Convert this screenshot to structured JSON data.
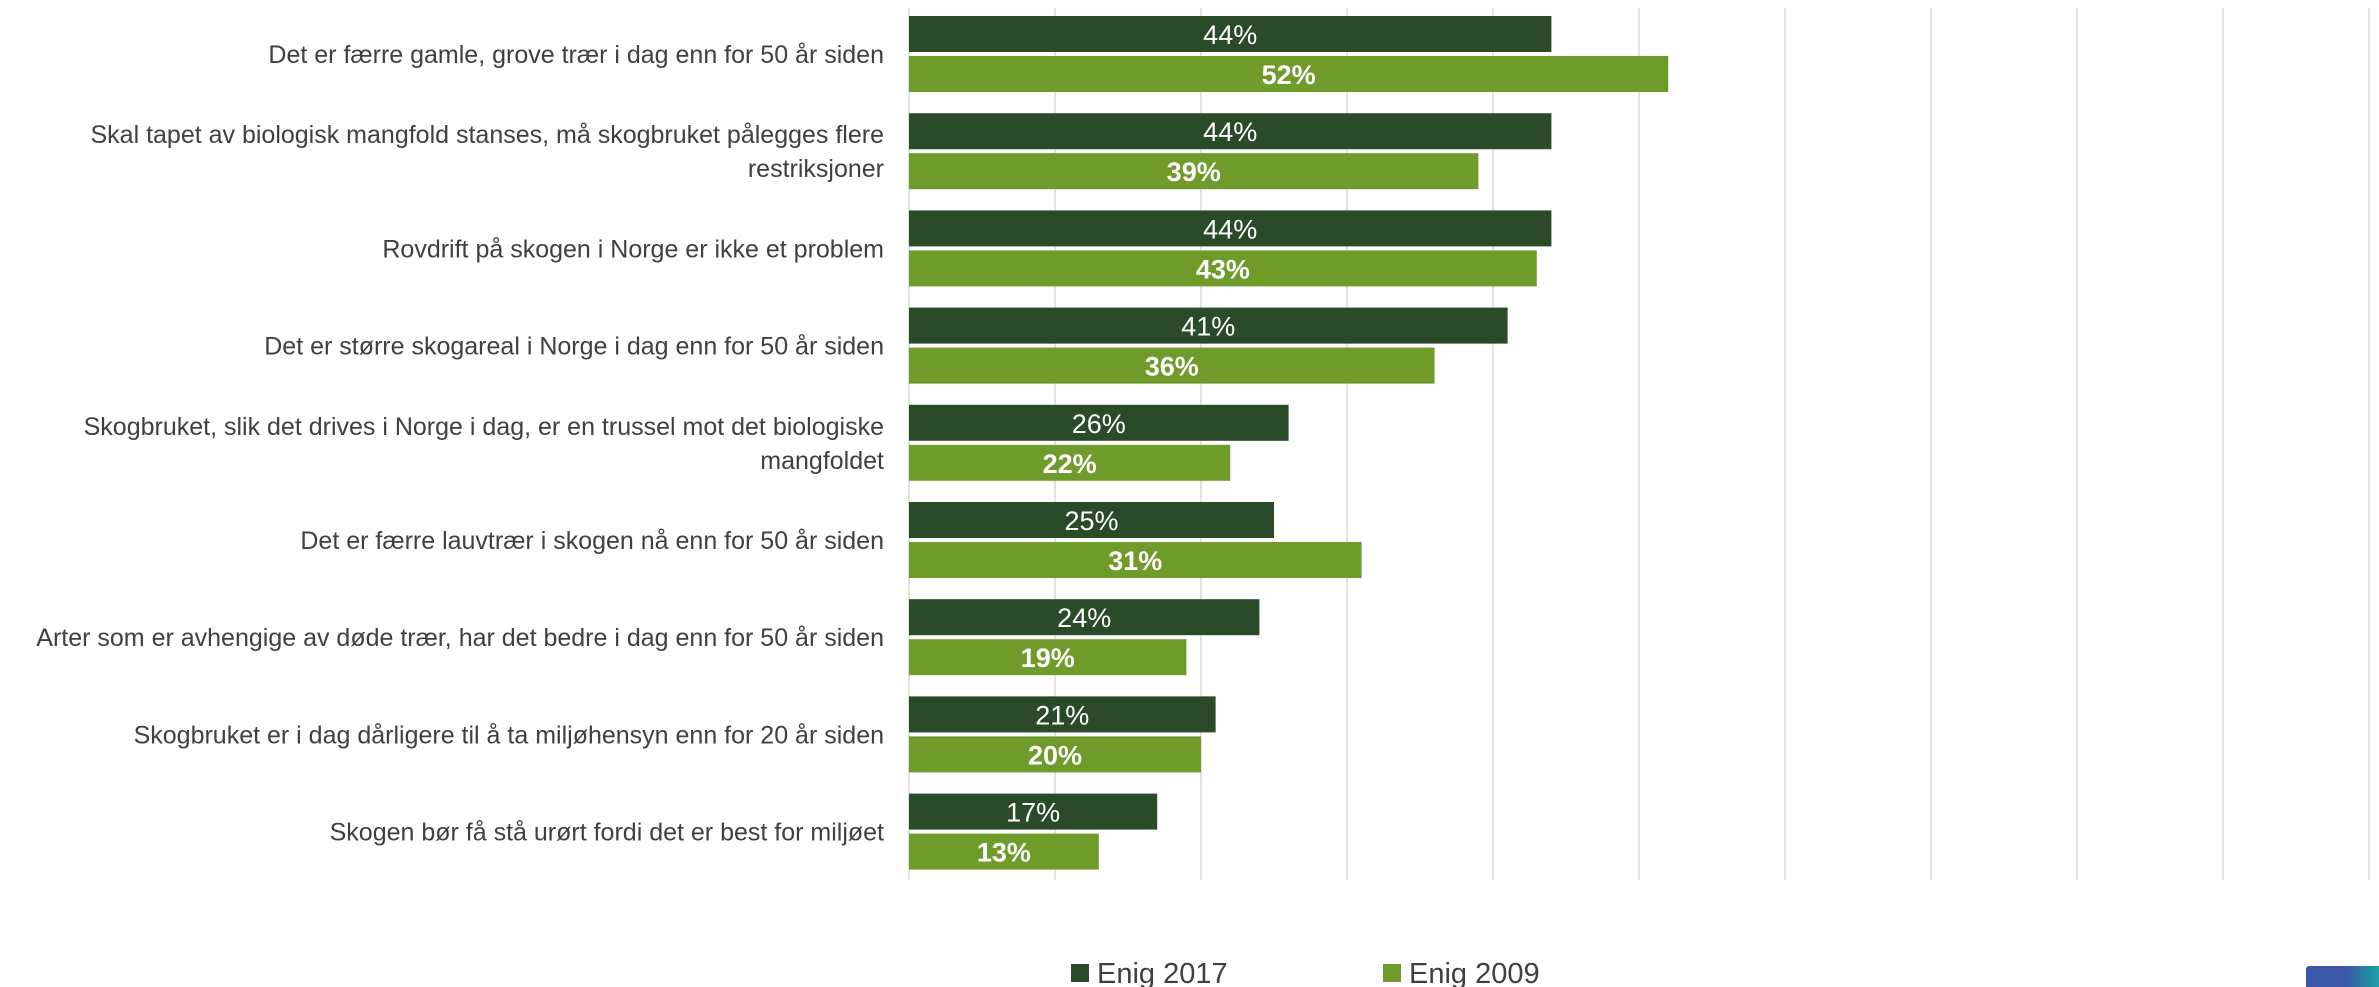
{
  "chart_data": {
    "type": "bar",
    "orientation": "horizontal",
    "categories": [
      [
        "Det er færre gamle, grove trær i dag enn for 50 år siden"
      ],
      [
        "Skal tapet av biologisk mangfold stanses, må skogbruket pålegges flere",
        "restriksjoner"
      ],
      [
        "Rovdrift på skogen i Norge er ikke et problem"
      ],
      [
        "Det er større skogareal i Norge i dag enn for 50 år siden"
      ],
      [
        "Skogbruket, slik det drives i Norge i dag, er en trussel mot det biologiske",
        "mangfoldet"
      ],
      [
        "Det er færre lauvtrær i skogen nå enn for 50 år siden"
      ],
      [
        "Arter som er avhengige av døde trær, har det bedre i dag enn for 50 år siden"
      ],
      [
        "Skogbruket er i dag dårligere til å ta miljøhensyn enn for 20 år siden"
      ],
      [
        "Skogen bør få stå urørt fordi det er best for miljøet"
      ]
    ],
    "series": [
      {
        "name": "Enig 2017",
        "color": "#2b4a2a",
        "values": [
          44,
          44,
          44,
          41,
          26,
          25,
          24,
          21,
          17
        ]
      },
      {
        "name": "Enig 2009",
        "color": "#6e9b2a",
        "values": [
          52,
          39,
          43,
          36,
          22,
          31,
          19,
          20,
          13
        ]
      }
    ],
    "xlim": [
      0,
      100
    ],
    "grid": true,
    "legend_position": "bottom",
    "value_format": "percent"
  }
}
